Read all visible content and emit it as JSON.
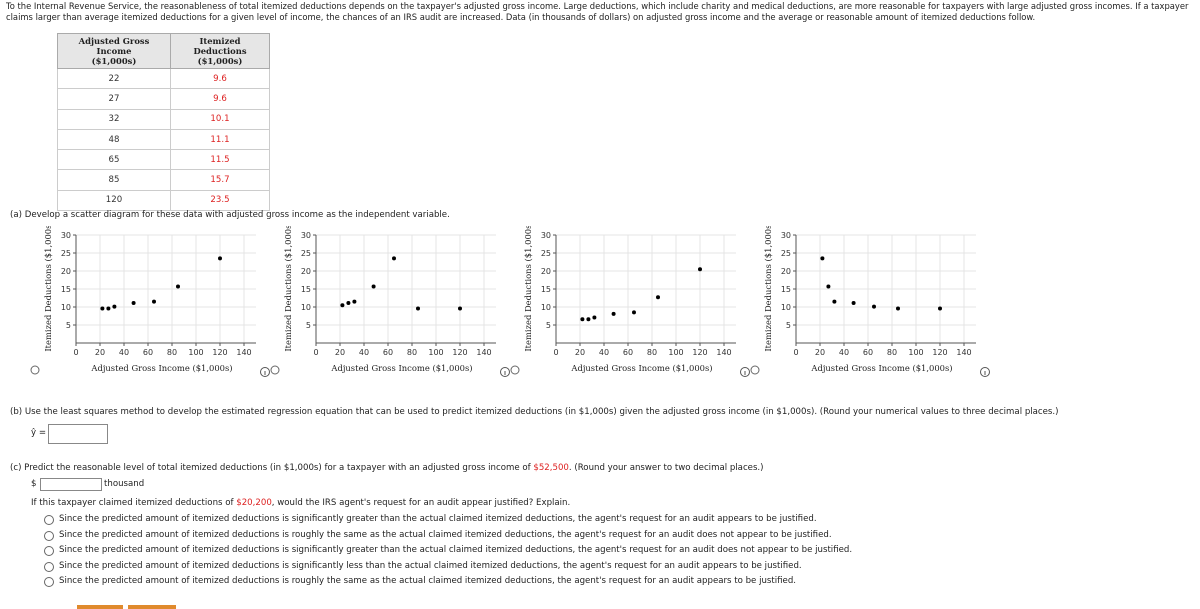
{
  "intro": "To the Internal Revenue Service, the reasonableness of total itemized deductions depends on the taxpayer's adjusted gross income. Large deductions, which include charity and medical deductions, are more reasonable for taxpayers with large adjusted gross incomes. If a taxpayer claims larger than average itemized deductions for a given level of income, the chances of an IRS audit are increased. Data (in thousands of dollars) on adjusted gross income and the average or reasonable amount of itemized deductions follow.",
  "table": {
    "headers": [
      [
        "Adjusted Gross Income",
        "($1,000s)"
      ],
      [
        "Itemized Deductions",
        "($1,000s)"
      ]
    ],
    "rows": [
      [
        22,
        9.6
      ],
      [
        27,
        9.6
      ],
      [
        32,
        10.1
      ],
      [
        48,
        11.1
      ],
      [
        65,
        11.5
      ],
      [
        85,
        15.7
      ],
      [
        120,
        23.5
      ]
    ]
  },
  "part_a": {
    "prompt": "(a) Develop a scatter diagram for these data with adjusted gross income as the independent variable.",
    "charts": [
      {
        "type": "scatter",
        "x_label": "Adjusted Gross Income ($1,000s)",
        "y_label": "Itemized Deductions ($1,000s)",
        "xlim": [
          0,
          150
        ],
        "ylim": [
          0,
          30
        ],
        "xticks": [
          0,
          20,
          40,
          60,
          80,
          100,
          120,
          140
        ],
        "yticks": [
          5,
          10,
          15,
          20,
          25,
          30
        ],
        "grid": true,
        "x": [
          22,
          27,
          32,
          48,
          65,
          85,
          120
        ],
        "y": [
          9.6,
          9.6,
          10.1,
          11.1,
          11.5,
          15.7,
          23.5
        ]
      },
      {
        "type": "scatter",
        "x_label": "Adjusted Gross Income ($1,000s)",
        "y_label": "Itemized Deductions ($1,000s)",
        "xlim": [
          0,
          150
        ],
        "ylim": [
          0,
          30
        ],
        "xticks": [
          0,
          20,
          40,
          60,
          80,
          100,
          120,
          140
        ],
        "yticks": [
          5,
          10,
          15,
          20,
          25,
          30
        ],
        "grid": true,
        "x": [
          22,
          27,
          32,
          48,
          65,
          85,
          120
        ],
        "y": [
          10.5,
          11.1,
          11.5,
          15.7,
          23.5,
          9.6,
          9.6
        ]
      },
      {
        "type": "scatter",
        "x_label": "Adjusted Gross Income ($1,000s)",
        "y_label": "Itemized Deductions ($1,000s)",
        "xlim": [
          0,
          150
        ],
        "ylim": [
          0,
          30
        ],
        "xticks": [
          0,
          20,
          40,
          60,
          80,
          100,
          120,
          140
        ],
        "yticks": [
          5,
          10,
          15,
          20,
          25,
          30
        ],
        "grid": true,
        "x": [
          22,
          27,
          32,
          48,
          65,
          85,
          120
        ],
        "y": [
          6.6,
          6.6,
          7.1,
          8.1,
          8.5,
          12.7,
          20.5
        ]
      },
      {
        "type": "scatter",
        "x_label": "Adjusted Gross Income ($1,000s)",
        "y_label": "Itemized Deductions ($1,000s)",
        "xlim": [
          0,
          150
        ],
        "ylim": [
          0,
          30
        ],
        "xticks": [
          0,
          20,
          40,
          60,
          80,
          100,
          120,
          140
        ],
        "yticks": [
          5,
          10,
          15,
          20,
          25,
          30
        ],
        "grid": true,
        "x": [
          22,
          27,
          32,
          48,
          65,
          85,
          120
        ],
        "y": [
          23.5,
          15.7,
          11.5,
          11.1,
          10.1,
          9.6,
          9.6
        ]
      }
    ]
  },
  "part_b": {
    "prompt": "(b) Use the least squares method to develop the estimated regression equation that can be used to predict itemized deductions (in $1,000s) given the adjusted gross income (in $1,000s). (Round your numerical values to three decimal places.)",
    "equation_label": "ŷ ="
  },
  "part_c": {
    "prompt": [
      "(c) Predict the reasonable level of total itemized deductions (in $1,000s) for a taxpayer with an adjusted gross income of ",
      "$52,500",
      ". (Round your answer to two decimal places.)"
    ],
    "currency": "$",
    "unit": "thousand",
    "question": [
      "If this taxpayer claimed itemized deductions of ",
      "$20,200",
      ", would the IRS agent's request for an audit appear justified? Explain."
    ],
    "options": [
      "Since the predicted amount of itemized deductions is significantly greater than the actual claimed itemized deductions, the agent's request for an audit appears to be justified.",
      "Since the predicted amount of itemized deductions is roughly the same as the actual claimed itemized deductions, the agent's request for an audit does not appear to be justified.",
      "Since the predicted amount of itemized deductions is significantly greater than the actual claimed itemized deductions, the agent's request for an audit does not appear to be justified.",
      "Since the predicted amount of itemized deductions is significantly less than the actual claimed itemized deductions, the agent's request for an audit appears to be justified.",
      "Since the predicted amount of itemized deductions is roughly the same as the actual claimed itemized deductions, the agent's request for an audit appears to be justified."
    ]
  }
}
